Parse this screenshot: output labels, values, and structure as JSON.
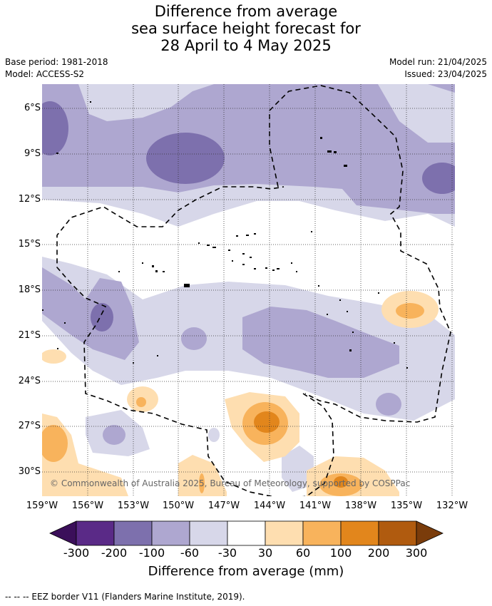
{
  "title": {
    "line1": "Difference from average",
    "line2": "sea surface height forecast for",
    "line3": "28 April to 4 May 2025"
  },
  "meta": {
    "base_period": "Base period: 1981-2018",
    "model": "Model: ACCESS-S2",
    "model_run": "Model run: 21/04/2025",
    "issued": "Issued: 23/04/2025"
  },
  "map": {
    "lat_labels": [
      "6°S",
      "9°S",
      "12°S",
      "15°S",
      "18°S",
      "21°S",
      "24°S",
      "27°S",
      "30°S"
    ],
    "lon_labels": [
      "159°W",
      "156°W",
      "153°W",
      "150°W",
      "147°W",
      "144°W",
      "141°W",
      "138°W",
      "135°W",
      "132°W"
    ],
    "copyright": "© Commonwealth of Australia 2025, Bureau of Meteorology, supported by COSPPac"
  },
  "colorbar": {
    "title": "Difference from average (mm)",
    "labels": [
      "-300",
      "-200",
      "-100",
      "-60",
      "-30",
      "30",
      "60",
      "100",
      "200",
      "300"
    ],
    "colors": [
      "#3b0f5a",
      "#5a2a87",
      "#7d70ad",
      "#aea7d0",
      "#d7d7e9",
      "#ffffff",
      "#fedeb0",
      "#f8b35c",
      "#e2861c",
      "#b05b0f",
      "#7a3c0b"
    ]
  },
  "footnote": "--  --  -- EEZ border V11 (Flanders Marine Institute, 2019)."
}
